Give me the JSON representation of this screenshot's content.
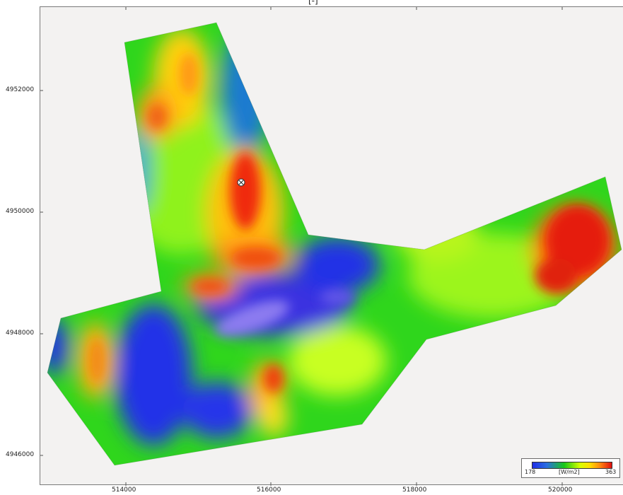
{
  "map": {
    "top_label": "[-]",
    "colors": {
      "background": "#f3f2f1",
      "scale_low": "#1f2ee6",
      "scale_mid_low": "#18c818",
      "scale_mid": "#d8ff00",
      "scale_mid_high": "#ffe000",
      "scale_high": "#e01010"
    },
    "x_ticks": [
      "514000",
      "516000",
      "518000",
      "520000"
    ],
    "y_ticks": [
      "4952000",
      "4950000",
      "4948000",
      "4946000"
    ],
    "marker_icon": "cursor-pin-icon"
  },
  "legend": {
    "min_label": "178",
    "unit_label": "[W/m2]",
    "max_label": "363"
  }
}
